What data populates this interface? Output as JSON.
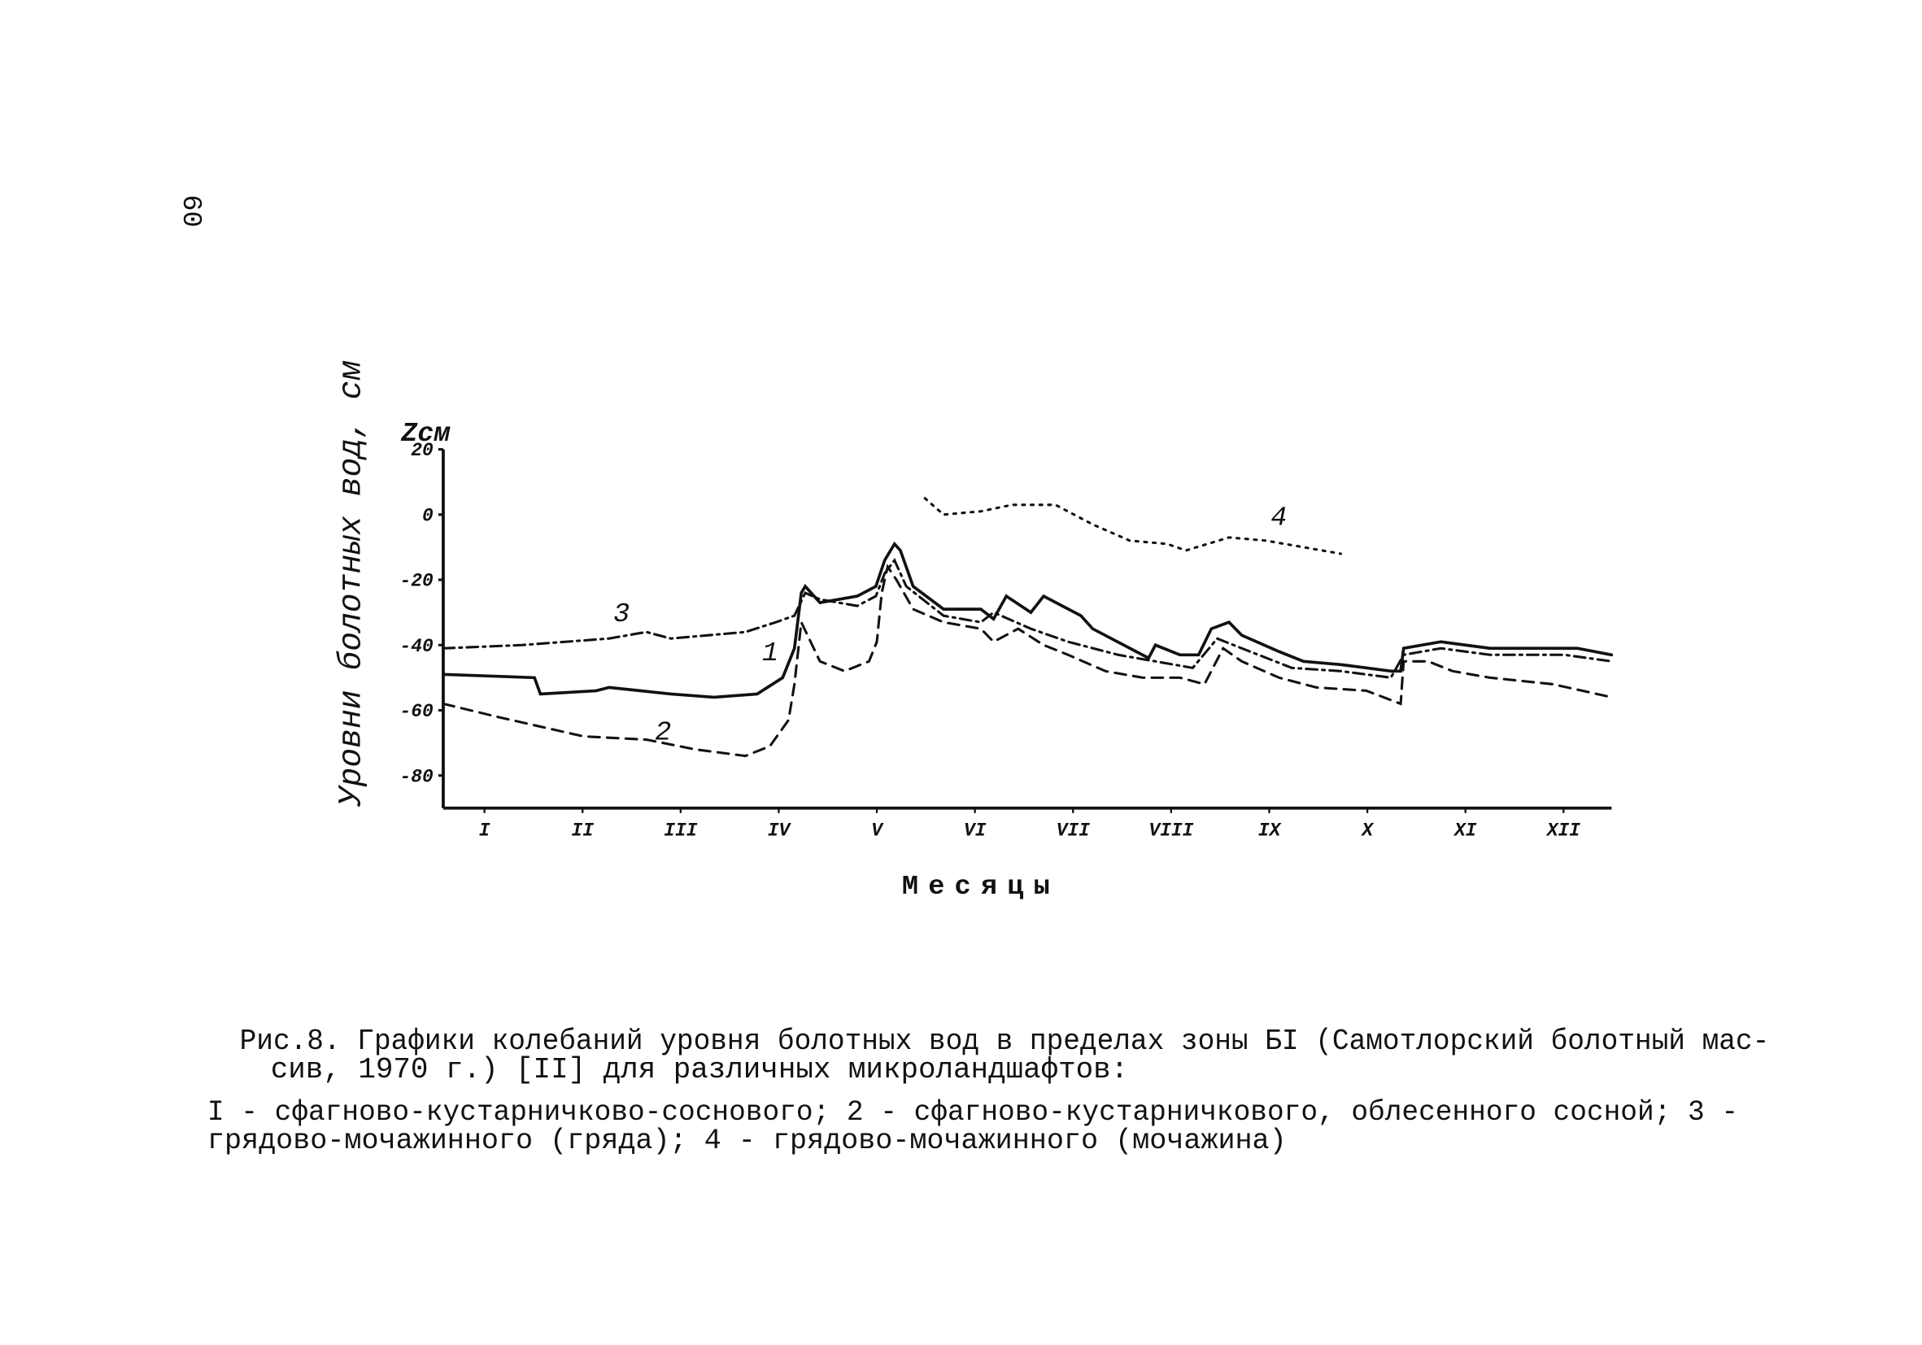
{
  "page_number": "60",
  "chart_data": {
    "type": "line",
    "y_title": "Уровни болотных вод, см",
    "y_unit": "Zсм",
    "x_title": "Месяцы",
    "xlim": [
      0.58,
      12.49
    ],
    "xticks": [
      {
        "value": 1,
        "label": "I"
      },
      {
        "value": 2,
        "label": "II"
      },
      {
        "value": 3,
        "label": "III"
      },
      {
        "value": 4,
        "label": "IV"
      },
      {
        "value": 5,
        "label": "V"
      },
      {
        "value": 6,
        "label": "VI"
      },
      {
        "value": 7,
        "label": "VII"
      },
      {
        "value": 8,
        "label": "VIII"
      },
      {
        "value": 9,
        "label": "IX"
      },
      {
        "value": 10,
        "label": "X"
      },
      {
        "value": 11,
        "label": "XI"
      },
      {
        "value": 12,
        "label": "XII"
      }
    ],
    "ylim": [
      -90,
      20
    ],
    "yticks": [
      20,
      0,
      -20,
      -40,
      -60,
      -80
    ],
    "series": [
      {
        "name": "1",
        "color": "#111111",
        "dash": "solid",
        "x": [
          0.58,
          1.51,
          1.57,
          2.14,
          2.27,
          2.9,
          3.34,
          3.78,
          4.04,
          4.16,
          4.23,
          4.27,
          4.42,
          4.8,
          4.99,
          5.08,
          5.18,
          5.24,
          5.37,
          5.68,
          6.06,
          6.19,
          6.32,
          6.57,
          6.7,
          6.89,
          7.08,
          7.2,
          7.58,
          7.77,
          7.84,
          8.09,
          8.28,
          8.41,
          8.59,
          8.72,
          9.1,
          9.35,
          9.73,
          9.99,
          10.24,
          10.34,
          10.37,
          10.75,
          11.25,
          11.76,
          12.14,
          12.49
        ],
        "values": [
          -49,
          -50,
          -55,
          -54,
          -53,
          -55,
          -56,
          -55,
          -50,
          -41,
          -24,
          -22,
          -27,
          -25,
          -22,
          -14,
          -9,
          -11,
          -22,
          -29,
          -29,
          -32,
          -25,
          -30,
          -25,
          -28,
          -31,
          -35,
          -41,
          -44,
          -40,
          -43,
          -43,
          -35,
          -33,
          -37,
          -42,
          -45,
          -46,
          -47,
          -48,
          -48,
          -41,
          -39,
          -41,
          -41,
          -41,
          -43
        ]
      },
      {
        "name": "2",
        "color": "#111111",
        "dash": "dashed",
        "x": [
          0.58,
          1.13,
          2.01,
          2.65,
          3.15,
          3.66,
          3.91,
          4.1,
          4.16,
          4.23,
          4.42,
          4.67,
          4.92,
          5.0,
          5.05,
          5.11,
          5.2,
          5.37,
          5.68,
          6.06,
          6.19,
          6.44,
          6.7,
          6.95,
          7.33,
          7.71,
          8.09,
          8.34,
          8.53,
          8.72,
          9.1,
          9.48,
          9.99,
          10.34,
          10.37,
          10.62,
          10.87,
          11.25,
          11.89,
          12.49
        ],
        "values": [
          -58,
          -62,
          -68,
          -69,
          -72,
          -74,
          -71,
          -63,
          -52,
          -33,
          -45,
          -48,
          -45,
          -39,
          -24,
          -16,
          -20,
          -29,
          -33,
          -35,
          -39,
          -35,
          -40,
          -43,
          -48,
          -50,
          -50,
          -52,
          -41,
          -45,
          -50,
          -53,
          -54,
          -58,
          -45,
          -45,
          -48,
          -50,
          -52,
          -56
        ]
      },
      {
        "name": "3",
        "color": "#111111",
        "dash": "dashdot",
        "x": [
          0.58,
          1.38,
          2.27,
          2.65,
          2.9,
          3.66,
          3.97,
          4.16,
          4.27,
          4.42,
          4.8,
          4.99,
          5.08,
          5.18,
          5.3,
          5.68,
          6.06,
          6.19,
          6.57,
          6.95,
          7.46,
          7.84,
          8.22,
          8.47,
          8.72,
          9.23,
          9.73,
          10.24,
          10.37,
          10.75,
          11.25,
          12.01,
          12.49
        ],
        "values": [
          -41,
          -40,
          -38,
          -36,
          -38,
          -36,
          -33,
          -31,
          -24,
          -26,
          -28,
          -25,
          -18,
          -14,
          -22,
          -31,
          -33,
          -30,
          -35,
          -39,
          -43,
          -45,
          -47,
          -38,
          -41,
          -47,
          -48,
          -50,
          -43,
          -41,
          -43,
          -43,
          -45
        ]
      },
      {
        "name": "4",
        "color": "#111111",
        "dash": "dotted",
        "x": [
          5.49,
          5.68,
          6.06,
          6.38,
          6.82,
          7.2,
          7.58,
          7.96,
          8.15,
          8.59,
          8.97,
          9.35,
          9.73
        ],
        "values": [
          5,
          0,
          1,
          3,
          3,
          -3,
          -8,
          -9,
          -11,
          -7,
          -8,
          -10,
          -12
        ]
      }
    ],
    "caption": [
      "Рис.8. Графики колебаний уровня болотных вод в пределах зоны БI (Самотлорский болотный мас-",
      "сив, 1970 г.) [II] для различных микроландшафтов:",
      "I - сфагново-кустарничково-соснового; 2 - сфагново-кустарничкового, облесенного сосной; 3 -",
      "грядово-мочажинного (гряда); 4 - грядово-мочажинного (мочажина)"
    ]
  }
}
